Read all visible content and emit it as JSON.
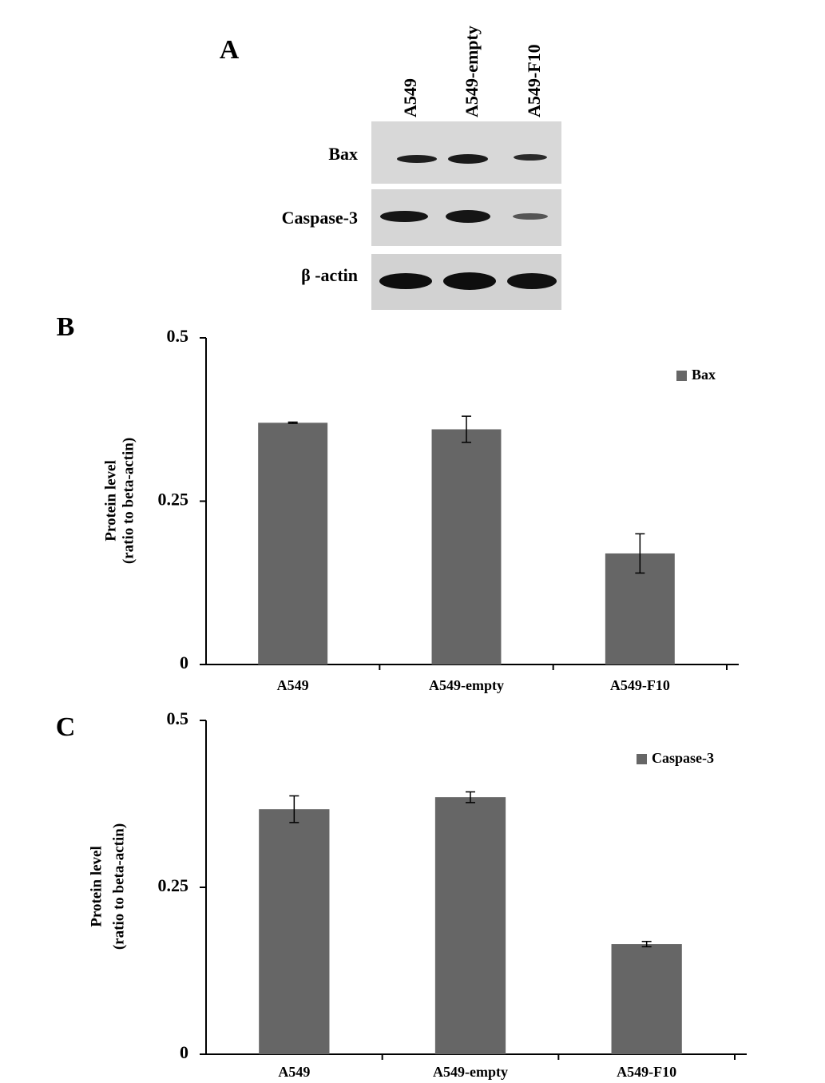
{
  "blot": {
    "panel_label": "A",
    "lanes": [
      "A549",
      "A549-empty",
      "A549-F10"
    ],
    "rows": [
      "Bax",
      "Caspase-3",
      "β -actin"
    ]
  },
  "chart_data": [
    {
      "type": "bar",
      "panel_label": "B",
      "y_label": [
        "Protein level",
        "(ratio to beta-actin)"
      ],
      "categories": [
        "A549",
        "A549-empty",
        "A549-F10"
      ],
      "series": [
        {
          "name": "Bax",
          "color": "#666666",
          "values": [
            0.37,
            0.36,
            0.17
          ],
          "errors": [
            0.001,
            0.02,
            0.03
          ]
        }
      ],
      "ylim": [
        0,
        0.5
      ],
      "yticks": [
        0,
        0.25,
        0.5
      ],
      "legend": "upper right"
    },
    {
      "type": "bar",
      "panel_label": "C",
      "y_label": [
        "Protein level",
        "(ratio to beta-actin)"
      ],
      "categories": [
        "A549",
        "A549-empty",
        "A549-F10"
      ],
      "series": [
        {
          "name": "Caspase-3",
          "color": "#666666",
          "values": [
            0.367,
            0.385,
            0.165
          ],
          "errors": [
            0.02,
            0.008,
            0.004
          ]
        }
      ],
      "ylim": [
        0,
        0.5
      ],
      "yticks": [
        0,
        0.25,
        0.5
      ],
      "legend": "upper right"
    }
  ]
}
